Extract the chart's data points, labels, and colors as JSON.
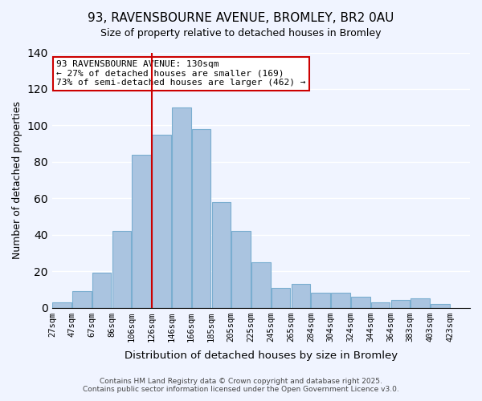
{
  "title": "93, RAVENSBOURNE AVENUE, BROMLEY, BR2 0AU",
  "subtitle": "Size of property relative to detached houses in Bromley",
  "xlabel": "Distribution of detached houses by size in Bromley",
  "ylabel": "Number of detached properties",
  "bar_labels": [
    "27sqm",
    "47sqm",
    "67sqm",
    "86sqm",
    "106sqm",
    "126sqm",
    "146sqm",
    "166sqm",
    "185sqm",
    "205sqm",
    "225sqm",
    "245sqm",
    "265sqm",
    "284sqm",
    "304sqm",
    "324sqm",
    "344sqm",
    "364sqm",
    "383sqm",
    "403sqm",
    "423sqm"
  ],
  "bar_values": [
    3,
    9,
    19,
    42,
    84,
    95,
    110,
    98,
    58,
    42,
    25,
    11,
    13,
    8,
    8,
    6,
    3,
    4,
    5,
    2
  ],
  "bar_color": "#aac4e0",
  "bar_edge_color": "#7aaed0",
  "vline_x_index": 5,
  "vline_color": "#cc0000",
  "annotation_title": "93 RAVENSBOURNE AVENUE: 130sqm",
  "annotation_line1": "← 27% of detached houses are smaller (169)",
  "annotation_line2": "73% of semi-detached houses are larger (462) →",
  "annotation_box_color": "#ffffff",
  "annotation_box_edge": "#cc0000",
  "background_color": "#f0f4ff",
  "grid_color": "#ffffff",
  "ylim": [
    0,
    140
  ],
  "yticks": [
    0,
    20,
    40,
    60,
    80,
    100,
    120,
    140
  ],
  "footer_line1": "Contains HM Land Registry data © Crown copyright and database right 2025.",
  "footer_line2": "Contains public sector information licensed under the Open Government Licence v3.0."
}
